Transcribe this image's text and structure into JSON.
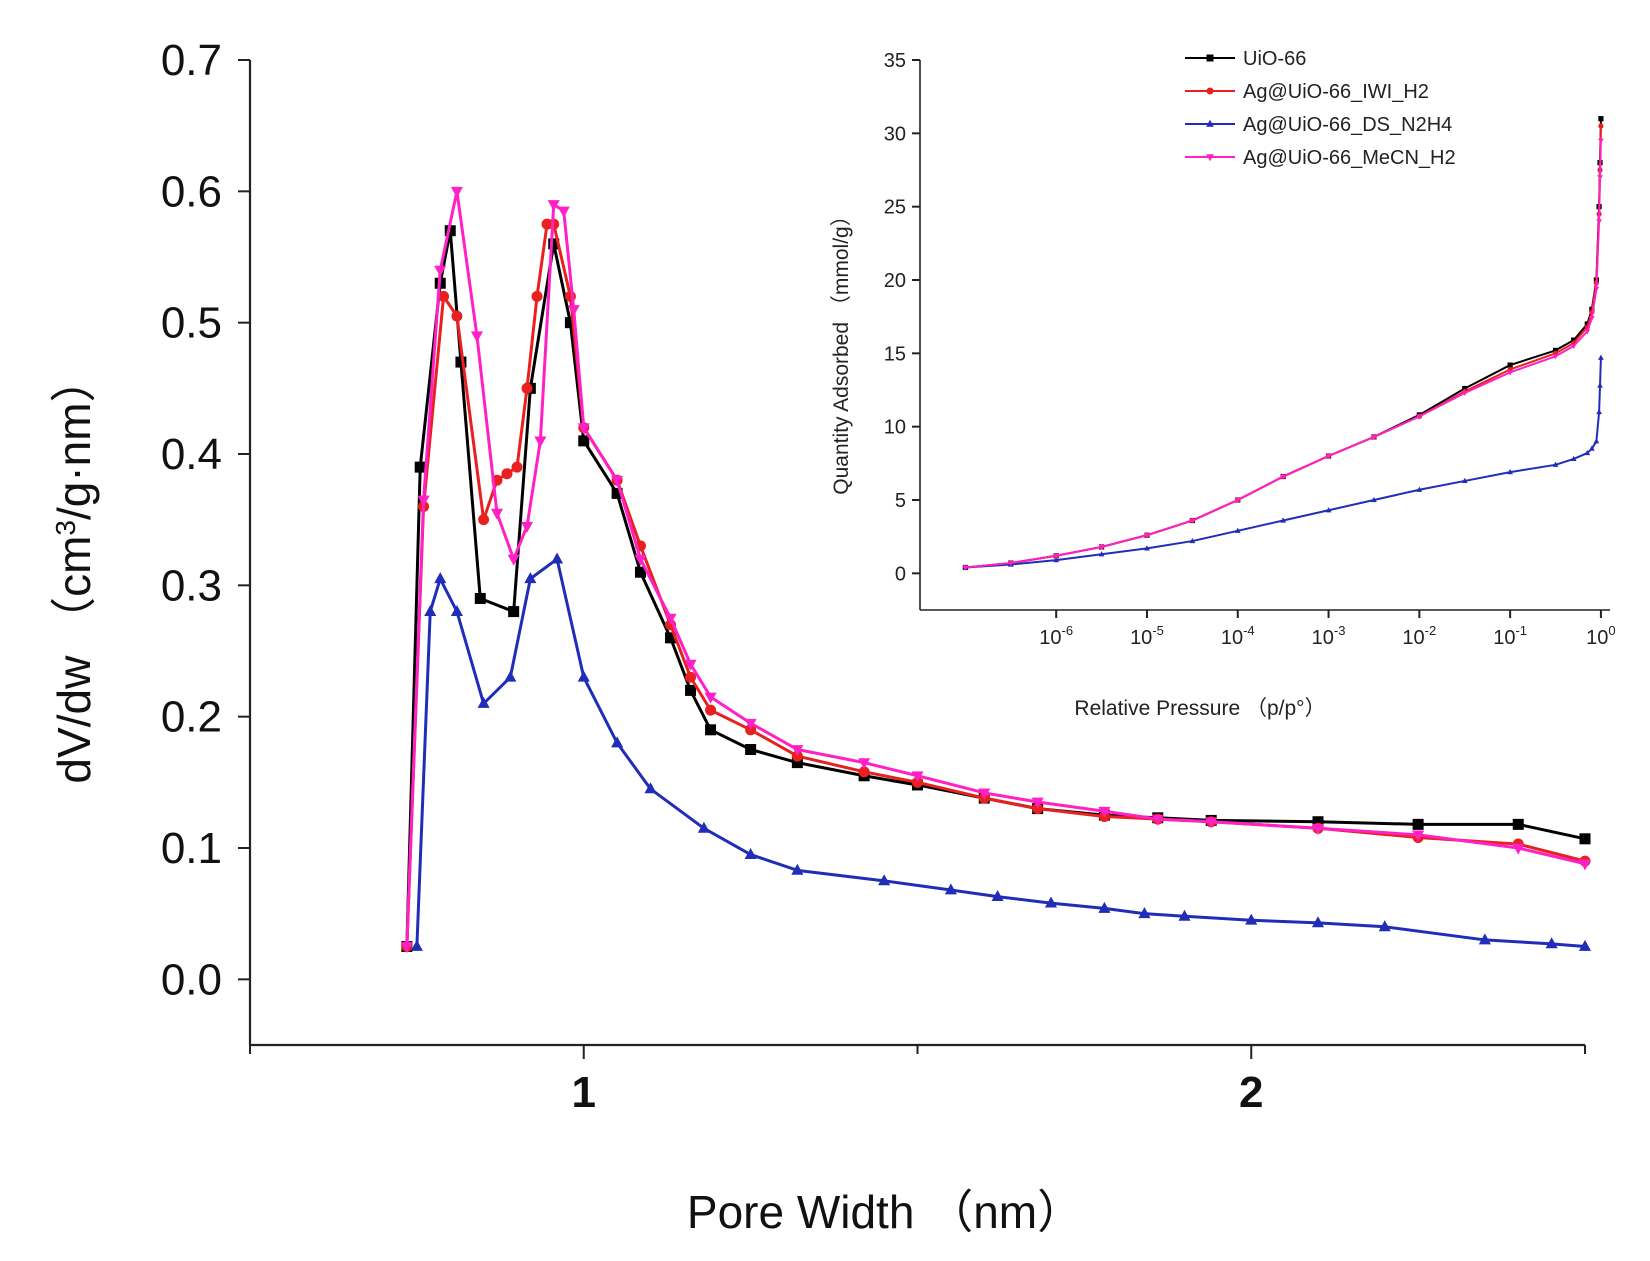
{
  "chart_data": [
    {
      "type": "line",
      "name": "main",
      "title": "",
      "xlabel": "Pore Width （nm）",
      "ylabel_main": "dV/dw （cm",
      "ylabel_sup": "3",
      "ylabel_tail": "/g·nm）",
      "xlim": [
        0.5,
        2.5
      ],
      "ylim": [
        -0.05,
        0.7
      ],
      "xticks": [
        {
          "value": 1,
          "label": "1"
        },
        {
          "value": 2,
          "label": "2"
        }
      ],
      "xminor": [
        0.5,
        1.5,
        2.5
      ],
      "yticks": [
        {
          "value": 0.0,
          "label": "0.0"
        },
        {
          "value": 0.1,
          "label": "0.1"
        },
        {
          "value": 0.2,
          "label": "0.2"
        },
        {
          "value": 0.3,
          "label": "0.3"
        },
        {
          "value": 0.4,
          "label": "0.4"
        },
        {
          "value": 0.5,
          "label": "0.5"
        },
        {
          "value": 0.6,
          "label": "0.6"
        },
        {
          "value": 0.7,
          "label": "0.7"
        }
      ],
      "series": [
        {
          "name": "UiO-66",
          "color": "#000000",
          "marker": "square",
          "x": [
            0.735,
            0.755,
            0.785,
            0.8,
            0.816,
            0.845,
            0.895,
            0.92,
            0.955,
            0.98,
            1.0,
            1.05,
            1.085,
            1.13,
            1.16,
            1.19,
            1.25,
            1.32,
            1.42,
            1.5,
            1.6,
            1.68,
            1.78,
            1.86,
            1.94,
            2.1,
            2.25,
            2.4,
            2.5
          ],
          "y": [
            0.025,
            0.39,
            0.53,
            0.57,
            0.47,
            0.29,
            0.28,
            0.45,
            0.56,
            0.5,
            0.41,
            0.37,
            0.31,
            0.26,
            0.22,
            0.19,
            0.175,
            0.165,
            0.155,
            0.148,
            0.138,
            0.13,
            0.125,
            0.123,
            0.121,
            0.12,
            0.118,
            0.118,
            0.107
          ]
        },
        {
          "name": "Ag@UiO-66_IWI_H2",
          "color": "#e8201f",
          "marker": "circle",
          "x": [
            0.735,
            0.76,
            0.79,
            0.81,
            0.85,
            0.87,
            0.885,
            0.9,
            0.915,
            0.93,
            0.945,
            0.955,
            0.98,
            1.0,
            1.05,
            1.085,
            1.13,
            1.16,
            1.19,
            1.25,
            1.32,
            1.42,
            1.5,
            1.6,
            1.68,
            1.78,
            1.86,
            1.94,
            2.1,
            2.25,
            2.4,
            2.5
          ],
          "y": [
            0.025,
            0.36,
            0.52,
            0.505,
            0.35,
            0.38,
            0.385,
            0.39,
            0.45,
            0.52,
            0.575,
            0.575,
            0.52,
            0.42,
            0.38,
            0.33,
            0.27,
            0.23,
            0.205,
            0.19,
            0.17,
            0.158,
            0.15,
            0.138,
            0.13,
            0.124,
            0.122,
            0.12,
            0.115,
            0.108,
            0.103,
            0.09
          ]
        },
        {
          "name": "Ag@UiO-66_DS_N2H4",
          "color": "#1f2db8",
          "marker": "triangle-up",
          "x": [
            0.75,
            0.77,
            0.785,
            0.81,
            0.85,
            0.89,
            0.92,
            0.96,
            1.0,
            1.05,
            1.1,
            1.18,
            1.25,
            1.32,
            1.45,
            1.55,
            1.62,
            1.7,
            1.78,
            1.84,
            1.9,
            2.0,
            2.1,
            2.2,
            2.35,
            2.45,
            2.5
          ],
          "y": [
            0.025,
            0.28,
            0.305,
            0.28,
            0.21,
            0.23,
            0.305,
            0.32,
            0.23,
            0.18,
            0.145,
            0.115,
            0.095,
            0.083,
            0.075,
            0.068,
            0.063,
            0.058,
            0.054,
            0.05,
            0.048,
            0.045,
            0.043,
            0.04,
            0.03,
            0.027,
            0.025
          ]
        },
        {
          "name": "Ag@UiO-66_MeCN_H2",
          "color": "#ff21c5",
          "marker": "triangle-down",
          "x": [
            0.735,
            0.76,
            0.785,
            0.81,
            0.84,
            0.87,
            0.895,
            0.915,
            0.935,
            0.955,
            0.97,
            0.985,
            1.0,
            1.05,
            1.085,
            1.13,
            1.16,
            1.19,
            1.25,
            1.32,
            1.42,
            1.5,
            1.6,
            1.68,
            1.78,
            1.86,
            1.94,
            2.1,
            2.25,
            2.4,
            2.5
          ],
          "y": [
            0.025,
            0.365,
            0.54,
            0.6,
            0.49,
            0.355,
            0.32,
            0.345,
            0.41,
            0.59,
            0.585,
            0.51,
            0.42,
            0.38,
            0.32,
            0.275,
            0.24,
            0.215,
            0.195,
            0.175,
            0.165,
            0.155,
            0.142,
            0.135,
            0.128,
            0.122,
            0.12,
            0.115,
            0.11,
            0.1,
            0.088
          ]
        }
      ]
    },
    {
      "type": "line",
      "name": "inset",
      "title": "",
      "xlabel": "Relative Pressure （p/p°）",
      "ylabel": "Quantity Adsorbed （mmol/g）",
      "x_scale": "log",
      "xlim_log10": [
        -7.5,
        0.1
      ],
      "ylim": [
        -2.5,
        35
      ],
      "xticks": [
        {
          "exp": -6,
          "base": "10",
          "sup": "-6"
        },
        {
          "exp": -5,
          "base": "10",
          "sup": "-5"
        },
        {
          "exp": -4,
          "base": "10",
          "sup": "-4"
        },
        {
          "exp": -3,
          "base": "10",
          "sup": "-3"
        },
        {
          "exp": -2,
          "base": "10",
          "sup": "-2"
        },
        {
          "exp": -1,
          "base": "10",
          "sup": "-1"
        },
        {
          "exp": 0,
          "base": "10",
          "sup": "0"
        }
      ],
      "yticks": [
        {
          "value": 0,
          "label": "0"
        },
        {
          "value": 5,
          "label": "5"
        },
        {
          "value": 10,
          "label": "10"
        },
        {
          "value": 15,
          "label": "15"
        },
        {
          "value": 20,
          "label": "20"
        },
        {
          "value": 25,
          "label": "25"
        },
        {
          "value": 30,
          "label": "30"
        },
        {
          "value": 35,
          "label": "35"
        }
      ],
      "legend": {
        "position": "top-left"
      },
      "series": [
        {
          "name": "UiO-66",
          "color": "#000000",
          "marker": "square",
          "log10x": [
            -7.0,
            -6.5,
            -6.0,
            -5.5,
            -5.0,
            -4.5,
            -4.0,
            -3.5,
            -3.0,
            -2.5,
            -2.0,
            -1.5,
            -1.0,
            -0.5,
            -0.3,
            -0.15,
            -0.1,
            -0.05,
            -0.02,
            -0.01,
            0.0
          ],
          "y": [
            0.4,
            0.7,
            1.2,
            1.8,
            2.6,
            3.6,
            5.0,
            6.6,
            8.0,
            9.3,
            10.8,
            12.6,
            14.2,
            15.2,
            15.9,
            17.0,
            18.0,
            20.0,
            25.0,
            28.0,
            31.0
          ]
        },
        {
          "name": "Ag@UiO-66_IWI_H2",
          "color": "#e8201f",
          "marker": "circle",
          "log10x": [
            -7.0,
            -6.5,
            -6.0,
            -5.5,
            -5.0,
            -4.5,
            -4.0,
            -3.5,
            -3.0,
            -2.5,
            -2.0,
            -1.5,
            -1.0,
            -0.5,
            -0.3,
            -0.15,
            -0.1,
            -0.05,
            -0.02,
            -0.01,
            0.0
          ],
          "y": [
            0.4,
            0.7,
            1.2,
            1.8,
            2.6,
            3.6,
            5.0,
            6.6,
            8.0,
            9.3,
            10.7,
            12.4,
            13.9,
            15.0,
            15.7,
            16.8,
            17.8,
            19.8,
            24.5,
            27.5,
            30.5
          ]
        },
        {
          "name": "Ag@UiO-66_DS_N2H4",
          "color": "#1f2db8",
          "marker": "triangle-up",
          "log10x": [
            -7.0,
            -6.5,
            -6.0,
            -5.5,
            -5.0,
            -4.5,
            -4.0,
            -3.5,
            -3.0,
            -2.5,
            -2.0,
            -1.5,
            -1.0,
            -0.5,
            -0.3,
            -0.15,
            -0.1,
            -0.05,
            -0.02,
            -0.01,
            0.0
          ],
          "y": [
            0.4,
            0.6,
            0.9,
            1.3,
            1.7,
            2.2,
            2.9,
            3.6,
            4.3,
            5.0,
            5.7,
            6.3,
            6.9,
            7.4,
            7.8,
            8.2,
            8.5,
            9.0,
            11.0,
            12.8,
            14.7
          ]
        },
        {
          "name": "Ag@UiO-66_MeCN_H2",
          "color": "#ff21c5",
          "marker": "triangle-down",
          "log10x": [
            -7.0,
            -6.5,
            -6.0,
            -5.5,
            -5.0,
            -4.5,
            -4.0,
            -3.5,
            -3.0,
            -2.5,
            -2.0,
            -1.5,
            -1.0,
            -0.5,
            -0.3,
            -0.15,
            -0.1,
            -0.05,
            -0.02,
            -0.01,
            0.0
          ],
          "y": [
            0.4,
            0.7,
            1.2,
            1.8,
            2.6,
            3.6,
            5.0,
            6.6,
            8.0,
            9.3,
            10.7,
            12.3,
            13.7,
            14.8,
            15.5,
            16.5,
            17.4,
            19.4,
            24.0,
            27.0,
            29.5
          ]
        }
      ]
    }
  ]
}
